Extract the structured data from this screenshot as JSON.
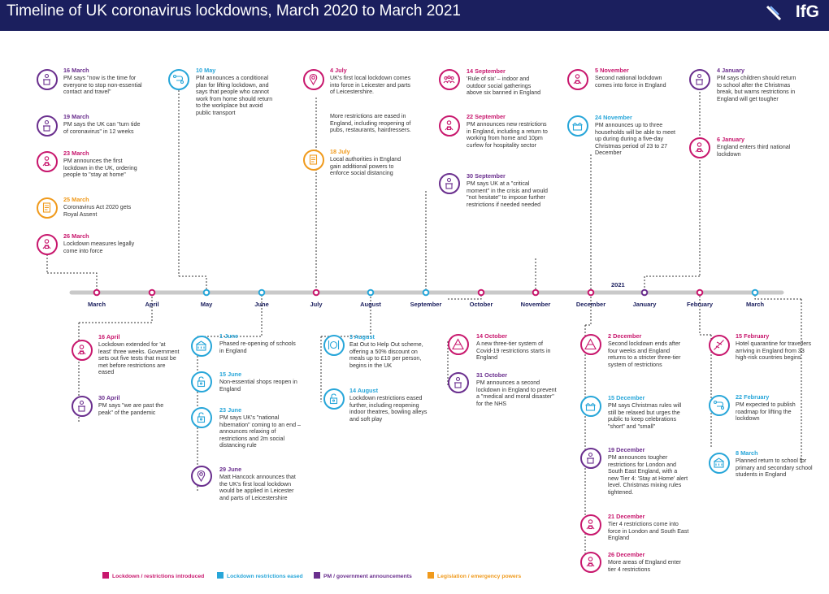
{
  "header": {
    "title": "Timeline of UK coronavirus lockdowns, March 2020 to March 2021",
    "brand": "IfG"
  },
  "colors": {
    "red": "#c8176d",
    "blue": "#27a6d9",
    "purple": "#6a2f8e",
    "orange": "#f09a1c",
    "navy": "#1b1f5e"
  },
  "timeline": {
    "year_label": "2021",
    "months": [
      "March",
      "April",
      "May",
      "June",
      "July",
      "August",
      "September",
      "October",
      "November",
      "December",
      "January",
      "February",
      "March"
    ]
  },
  "events": [
    {
      "date": "16 March",
      "text": "PM says \"now is the time for everyone to stop non-essential contact and travel\"",
      "cat": "purple",
      "icon": "podium-icon"
    },
    {
      "date": "19 March",
      "text": "PM says the UK can \"turn tide of coronavirus\" in 12 weeks",
      "cat": "purple",
      "icon": "podium-icon"
    },
    {
      "date": "23 March",
      "text": "PM announces the first lockdown in the UK, ordering people to \"stay at home\"",
      "cat": "red",
      "icon": "lock-person-icon"
    },
    {
      "date": "25 March",
      "text": "Coronavirus Act 2020 gets Royal Assent",
      "cat": "orange",
      "icon": "document-icon"
    },
    {
      "date": "26 March",
      "text": "Lockdown measures legally come into force",
      "cat": "red",
      "icon": "lock-person-icon"
    },
    {
      "date": "16 April",
      "text": "Lockdown extended for 'at least' three weeks. Government sets out five tests that must be met before restrictions are eased",
      "cat": "red",
      "icon": "lock-person-icon"
    },
    {
      "date": "30 April",
      "text": "PM says \"we are past the peak\" of the pandemic",
      "cat": "purple",
      "icon": "podium-icon"
    },
    {
      "date": "10 May",
      "text": "PM announces a conditional plan for lifting lockdown, and says that people who cannot work from home should return to the workplace but avoid public transport",
      "cat": "blue",
      "icon": "route-icon"
    },
    {
      "date": "1 June",
      "text": "Phased re-opening of schools in England",
      "cat": "blue",
      "icon": "school-icon"
    },
    {
      "date": "15 June",
      "text": "Non-essential shops reopen in England",
      "cat": "blue",
      "icon": "unlock-icon"
    },
    {
      "date": "23 June",
      "text": "PM says UK's \"national hibernation\" coming to an end – announces relaxing of restrictions and 2m social distancing rule",
      "cat": "blue",
      "icon": "unlock-icon"
    },
    {
      "date": "29 June",
      "text": "Matt Hancock announces that the UK's first local lockdown would be applied in Leicester and parts of Leicestershire",
      "cat": "purple",
      "icon": "location-pin-icon"
    },
    {
      "date": "4 July",
      "text": "UK's first local lockdown comes into force in Leicester and parts of Leicestershire.",
      "cat": "red",
      "icon": "location-pin-icon"
    },
    {
      "date": "",
      "text": "More restrictions are eased in England, including reopening of pubs, restaurants, hairdressers.",
      "cat": "red",
      "icon": ""
    },
    {
      "date": "18 July",
      "text": "Local authorities in England gain additional powers to enforce social distancing",
      "cat": "orange",
      "icon": "document-icon"
    },
    {
      "date": "3 August",
      "text": "Eat Out to Help Out scheme, offering a 50% discount on meals up to £10 per person, begins in the UK",
      "cat": "blue",
      "icon": "cutlery-icon"
    },
    {
      "date": "14 August",
      "text": "Lockdown restrictions eased further, including reopening indoor theatres, bowling alleys and soft play",
      "cat": "blue",
      "icon": "unlock-icon"
    },
    {
      "date": "14 September",
      "text": "'Rule of six' – indoor and outdoor social gatherings above six banned in England",
      "cat": "red",
      "icon": "group-icon"
    },
    {
      "date": "22 September",
      "text": "PM announces new restrictions in England, including a return to working from home and 10pm curfew for hospitality sector",
      "cat": "red",
      "icon": "lock-person-icon"
    },
    {
      "date": "30 September",
      "text": "PM says UK at a \"critical moment\" in the crisis and would \"not hesitate\" to impose further restrictions if needed needed",
      "cat": "purple",
      "icon": "podium-icon"
    },
    {
      "date": "14 October",
      "text": "A new three-tier system of Covid-19 restrictions starts in England",
      "cat": "red",
      "icon": "tiers-icon"
    },
    {
      "date": "31 October",
      "text": "PM announces a second lockdown in England to prevent a \"medical and moral disaster\" for the NHS",
      "cat": "purple",
      "icon": "podium-icon"
    },
    {
      "date": "5 November",
      "text": "Second national lockdown comes into force in England",
      "cat": "red",
      "icon": "lock-person-icon"
    },
    {
      "date": "24 November",
      "text": "PM announces up to three households will be able to meet up during during a five-day Christmas period of 23 to 27 December",
      "cat": "blue",
      "icon": "houses-icon"
    },
    {
      "date": "2 December",
      "text": "Second lockdown ends after four weeks and England returns to a stricter three-tier system of restrictions",
      "cat": "red",
      "icon": "tiers-icon"
    },
    {
      "date": "15 December",
      "text": "PM says Christmas rules will still be relaxed but urges the public to keep celebrations \"short\" and \"small\"",
      "cat": "blue",
      "icon": "houses-icon"
    },
    {
      "date": "19 December",
      "text": "PM announces tougher restrictions for London and South East England, with a new Tier 4: 'Stay at Home' alert level. Christmas mixing rules tightened.",
      "cat": "purple",
      "icon": "podium-icon"
    },
    {
      "date": "21 December",
      "text": "Tier 4 restrictions come into force in London and South East England",
      "cat": "red",
      "icon": "lock-person-icon"
    },
    {
      "date": "26 December",
      "text": "More areas of England enter tier 4 restrictions",
      "cat": "red",
      "icon": "lock-person-icon"
    },
    {
      "date": "4 January",
      "text": "PM says children should return to school after the Christmas break, but warns restrictions in England will get tougher",
      "cat": "purple",
      "icon": "podium-icon"
    },
    {
      "date": "6 January",
      "text": "England enters third national lockdown",
      "cat": "red",
      "icon": "lock-person-icon"
    },
    {
      "date": "15 February",
      "text": "Hotel quarantine for travellers arriving in England from 33 high-risk countries begins",
      "cat": "red",
      "icon": "plane-icon"
    },
    {
      "date": "22 February",
      "text": "PM expected to publish roadmap for lifting the lockdown",
      "cat": "blue",
      "icon": "route-icon"
    },
    {
      "date": "8 March",
      "text": "Planned return to school for primary and secondary school students in England",
      "cat": "blue",
      "icon": "school-icon"
    }
  ],
  "legend": [
    {
      "label": "Lockdown / restrictions introduced",
      "color": "#c8176d"
    },
    {
      "label": "Lockdown restrictions eased",
      "color": "#27a6d9"
    },
    {
      "label": "PM / government announcements",
      "color": "#6a2f8e"
    },
    {
      "label": "Legislation / emergency powers",
      "color": "#f09a1c"
    }
  ]
}
